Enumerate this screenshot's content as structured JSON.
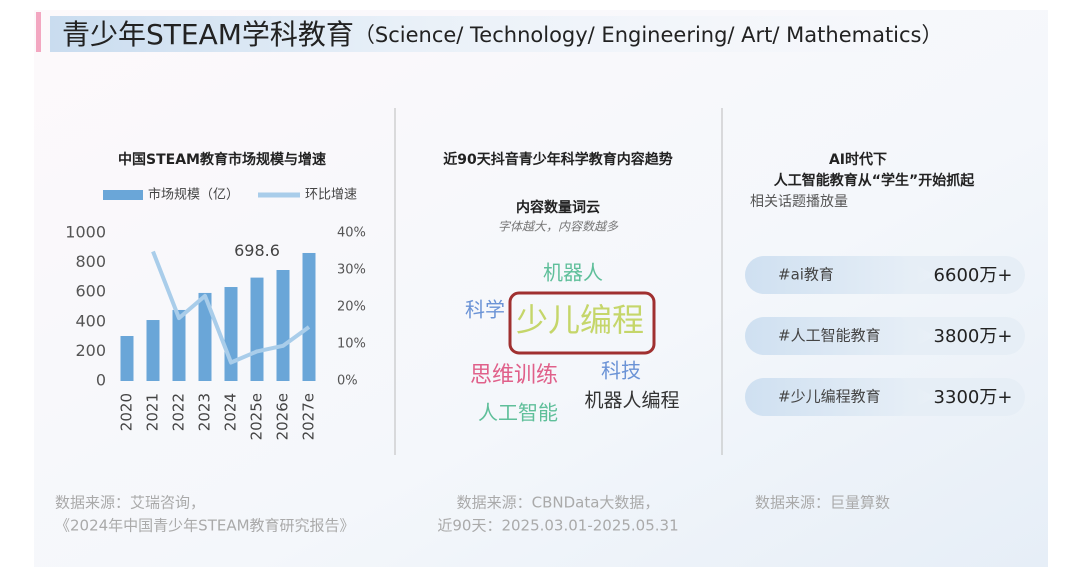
{
  "header": {
    "title": "青少年STEAM学科教育",
    "subtitle": "（Science/ Technology/ Engineering/ Art/ Mathematics）"
  },
  "chart_data": {
    "type": "bar_line",
    "title": "中国STEAM教育市场规模与增速",
    "categories": [
      "2020",
      "2021",
      "2022",
      "2023",
      "2024",
      "2025e",
      "2026e",
      "2027e"
    ],
    "series": [
      {
        "name": "市场规模（亿）",
        "type": "bar",
        "color": "#6aa6d8",
        "values": [
          304,
          412,
          480,
          595,
          635,
          698.6,
          750,
          865
        ],
        "value_labels": [
          null,
          null,
          null,
          null,
          null,
          "698.6",
          null,
          null
        ]
      },
      {
        "name": "环比增速",
        "type": "line",
        "axis": "y2",
        "color": "#a9cdea",
        "values": [
          null,
          35,
          17,
          23,
          5,
          8,
          9.5,
          14.6
        ]
      }
    ],
    "ylim": [
      0,
      1000
    ],
    "yticks": [
      0,
      200,
      400,
      600,
      800,
      1000
    ],
    "y2lim": [
      0,
      40
    ],
    "y2ticks": [
      {
        "value": 0,
        "label": "0%"
      },
      {
        "value": 10,
        "label": "10%"
      },
      {
        "value": 20,
        "label": "20%"
      },
      {
        "value": 30,
        "label": "30%"
      },
      {
        "value": 40,
        "label": "40%"
      }
    ],
    "legend": "top"
  },
  "wordcloud": {
    "title": "近90天抖音青少年科学教育内容趋势",
    "subtitle": "内容数量词云",
    "note": "字体越大，内容数越多",
    "words": [
      {
        "text": "机器人",
        "color": "#5fbf9a"
      },
      {
        "text": "科学",
        "color": "#6b93d6"
      },
      {
        "text": "少儿编程",
        "color": "#c5d66a"
      },
      {
        "text": "思维训练",
        "color": "#e0608a"
      },
      {
        "text": "科技",
        "color": "#6b93d6"
      },
      {
        "text": "机器人编程",
        "color": "#333333"
      },
      {
        "text": "人工智能",
        "color": "#5fbf9a"
      }
    ]
  },
  "topics": {
    "title_lines": [
      "AI时代下",
      "人工智能教育从“学生”开始抓起"
    ],
    "subtitle": "相关话题播放量",
    "items": [
      {
        "tag": "#ai教育",
        "value": "6600万+"
      },
      {
        "tag": "#人工智能教育",
        "value": "3800万+"
      },
      {
        "tag": "#少儿编程教育",
        "value": "3300万+"
      }
    ]
  },
  "sources": [
    [
      "数据来源：艾瑞咨询，",
      "《2024年中国青少年STEAM教育研究报告》"
    ],
    [
      "数据来源：CBNData大数据，",
      "近90天：2025.03.01-2025.05.31"
    ],
    [
      "数据来源：巨量算数"
    ]
  ]
}
